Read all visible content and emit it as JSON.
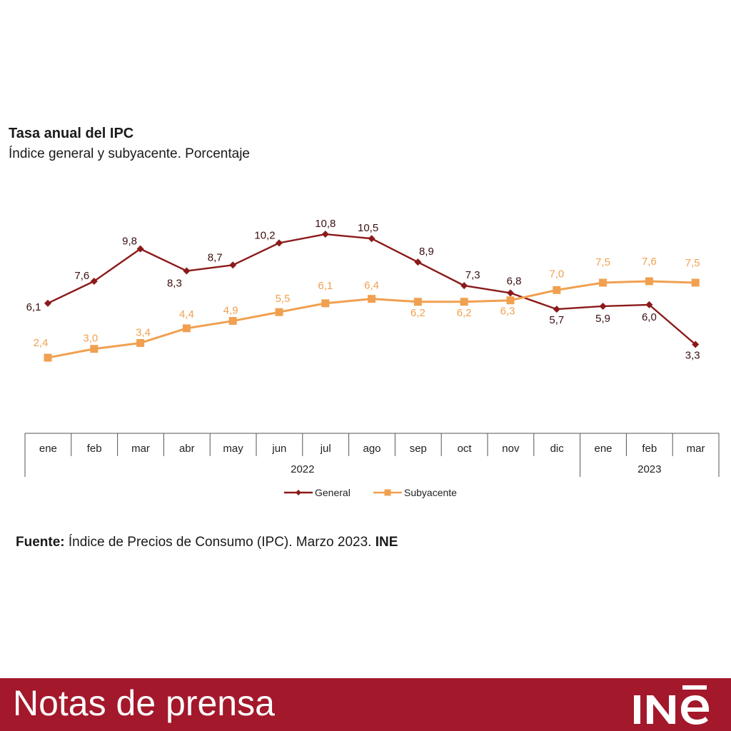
{
  "chart_data": {
    "type": "line",
    "title": "Tasa anual del IPC",
    "subtitle": "Índice general y subyacente. Porcentaje",
    "categories": [
      "ene",
      "feb",
      "mar",
      "abr",
      "may",
      "jun",
      "jul",
      "ago",
      "sep",
      "oct",
      "nov",
      "dic",
      "ene",
      "feb",
      "mar"
    ],
    "year_groups": [
      {
        "label": "2022",
        "count": 12
      },
      {
        "label": "2023",
        "count": 3
      }
    ],
    "series": [
      {
        "name": "General",
        "color": "#8b1a1a",
        "marker": "diamond",
        "values": [
          6.1,
          7.6,
          9.8,
          8.3,
          8.7,
          10.2,
          10.8,
          10.5,
          8.9,
          7.3,
          6.8,
          5.7,
          5.9,
          6.0,
          3.3
        ],
        "labels": [
          "6,1",
          "7,6",
          "9,8",
          "8,3",
          "8,7",
          "10,2",
          "10,8",
          "10,5",
          "8,9",
          "7,3",
          "6,8",
          "5,7",
          "5,9",
          "6,0",
          "3,3"
        ]
      },
      {
        "name": "Subyacente",
        "color": "#f0a050",
        "marker": "square",
        "values": [
          2.4,
          3.0,
          3.4,
          4.4,
          4.9,
          5.5,
          6.1,
          6.4,
          6.2,
          6.2,
          6.3,
          7.0,
          7.5,
          7.6,
          7.5
        ],
        "labels": [
          "2,4",
          "3,0",
          "3,4",
          "4,4",
          "4,9",
          "5,5",
          "6,1",
          "6,4",
          "6,2",
          "6,2",
          "6,3",
          "7,0",
          "7,5",
          "7,6",
          "7,5"
        ]
      }
    ],
    "legend_position": "bottom",
    "grid": false
  },
  "source": {
    "label": "Fuente:",
    "text": "Índice de Precios de Consumo (IPC). Marzo 2023.",
    "org": "INE"
  },
  "footer": {
    "title": "Notas de prensa",
    "logo_text": "INE",
    "color": "#a3182b"
  }
}
